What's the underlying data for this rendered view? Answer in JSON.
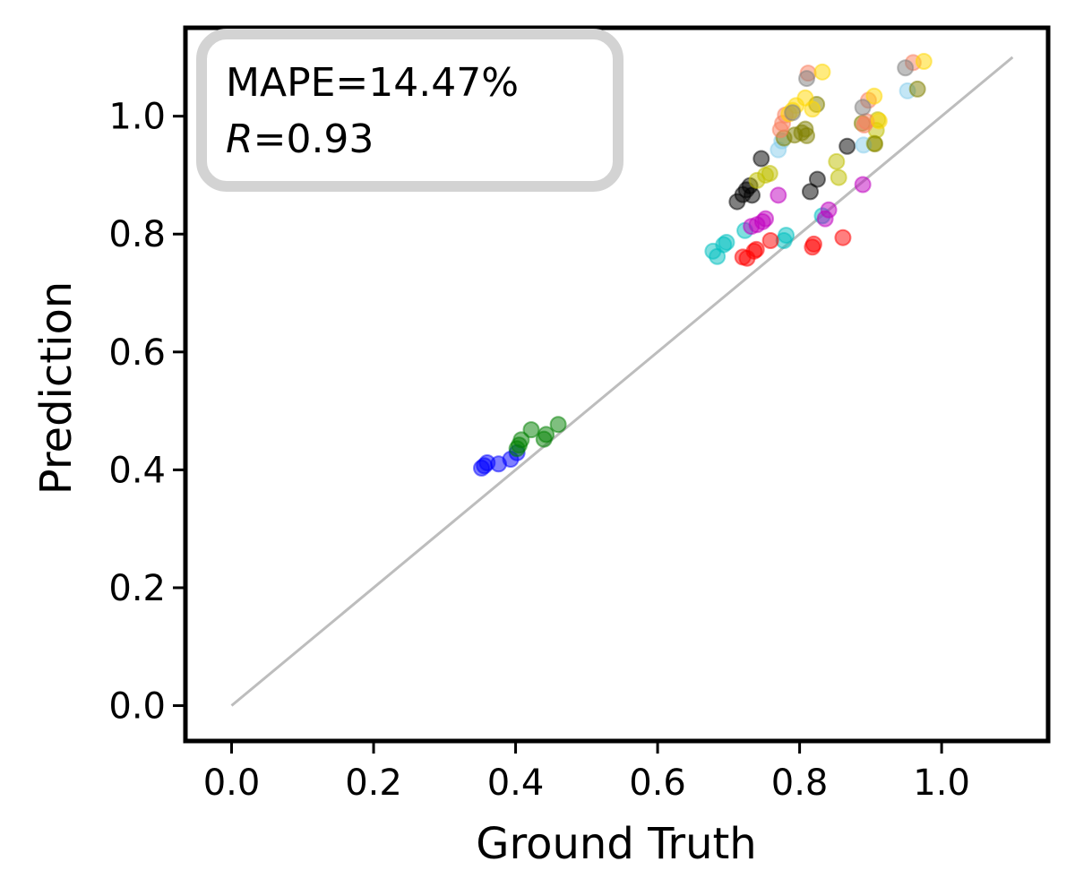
{
  "chart_data": {
    "type": "scatter",
    "title": "",
    "xlabel": "Ground Truth",
    "ylabel": "Prediction",
    "xlim": [
      -0.065,
      1.15
    ],
    "ylim": [
      -0.06,
      1.15
    ],
    "xticks": [
      0.0,
      0.2,
      0.4,
      0.6,
      0.8,
      1.0
    ],
    "xtick_labels": [
      "0.0",
      "0.2",
      "0.4",
      "0.6",
      "0.8",
      "1.0"
    ],
    "yticks": [
      0.0,
      0.2,
      0.4,
      0.6,
      0.8,
      1.0
    ],
    "ytick_labels": [
      "0.0",
      "0.2",
      "0.4",
      "0.6",
      "0.8",
      "1.0"
    ],
    "grid": false,
    "stats": {
      "mape_text": "MAPE=14.47%",
      "r_symbol": "R",
      "r_value_text": "=0.93"
    },
    "reference_line": {
      "x": [
        0.0,
        1.1
      ],
      "y": [
        0.0,
        1.1
      ],
      "color": "#bdbdbd"
    },
    "series": [
      {
        "name": "blue",
        "color": "#0000ff",
        "x": [
          0.352,
          0.356,
          0.36,
          0.376,
          0.393,
          0.402
        ],
        "y": [
          0.403,
          0.407,
          0.412,
          0.41,
          0.418,
          0.429
        ]
      },
      {
        "name": "green",
        "color": "#008000",
        "x": [
          0.402,
          0.405,
          0.408,
          0.422,
          0.44,
          0.443,
          0.46
        ],
        "y": [
          0.436,
          0.442,
          0.451,
          0.468,
          0.452,
          0.46,
          0.477
        ]
      },
      {
        "name": "cyan",
        "color": "#00bfbf",
        "x": [
          0.678,
          0.684,
          0.693,
          0.697,
          0.723,
          0.778,
          0.781,
          0.832
        ],
        "y": [
          0.771,
          0.762,
          0.782,
          0.786,
          0.806,
          0.789,
          0.798,
          0.831
        ]
      },
      {
        "name": "red",
        "color": "#ff0000",
        "x": [
          0.72,
          0.726,
          0.736,
          0.739,
          0.759,
          0.818,
          0.82,
          0.861
        ],
        "y": [
          0.761,
          0.759,
          0.771,
          0.774,
          0.789,
          0.778,
          0.783,
          0.794
        ]
      },
      {
        "name": "magenta",
        "color": "#bf00bf",
        "x": [
          0.732,
          0.74,
          0.748,
          0.752,
          0.77,
          0.836,
          0.841,
          0.889
        ],
        "y": [
          0.813,
          0.816,
          0.821,
          0.826,
          0.866,
          0.826,
          0.841,
          0.884
        ]
      },
      {
        "name": "black",
        "color": "#000000",
        "x": [
          0.712,
          0.72,
          0.725,
          0.73,
          0.733,
          0.746,
          0.815,
          0.825,
          0.867
        ],
        "y": [
          0.855,
          0.867,
          0.875,
          0.882,
          0.866,
          0.928,
          0.872,
          0.893,
          0.949
        ]
      },
      {
        "name": "olive-yellow",
        "color": "#bfbf00",
        "x": [
          0.74,
          0.752,
          0.758,
          0.852,
          0.855,
          0.905,
          0.908,
          0.91
        ],
        "y": [
          0.891,
          0.9,
          0.903,
          0.923,
          0.896,
          0.954,
          0.976,
          0.994
        ]
      },
      {
        "name": "light-blue",
        "color": "#87ceeb",
        "x": [
          0.77,
          0.775,
          0.89,
          0.952
        ],
        "y": [
          0.943,
          0.958,
          0.951,
          1.043
        ]
      },
      {
        "name": "olive",
        "color": "#808000",
        "x": [
          0.778,
          0.793,
          0.803,
          0.808,
          0.81,
          0.824,
          0.888,
          0.906,
          0.966
        ],
        "y": [
          0.963,
          0.968,
          0.972,
          0.978,
          0.967,
          1.02,
          0.988,
          0.953,
          1.046
        ]
      },
      {
        "name": "salmon",
        "color": "#fa8060",
        "x": [
          0.773,
          0.776,
          0.78,
          0.812,
          0.891,
          0.894,
          0.897,
          0.96
        ],
        "y": [
          0.977,
          0.988,
          1.002,
          1.073,
          0.985,
          0.991,
          1.027,
          1.091
        ]
      },
      {
        "name": "gold",
        "color": "#ffd700",
        "x": [
          0.785,
          0.79,
          0.795,
          0.808,
          0.818,
          0.832,
          0.905,
          0.912,
          0.975
        ],
        "y": [
          1.004,
          1.01,
          1.018,
          1.031,
          1.012,
          1.075,
          1.034,
          0.992,
          1.093
        ]
      },
      {
        "name": "gray",
        "color": "#808080",
        "x": [
          0.79,
          0.81,
          0.889,
          0.949
        ],
        "y": [
          1.006,
          1.064,
          1.015,
          1.082
        ]
      }
    ]
  }
}
